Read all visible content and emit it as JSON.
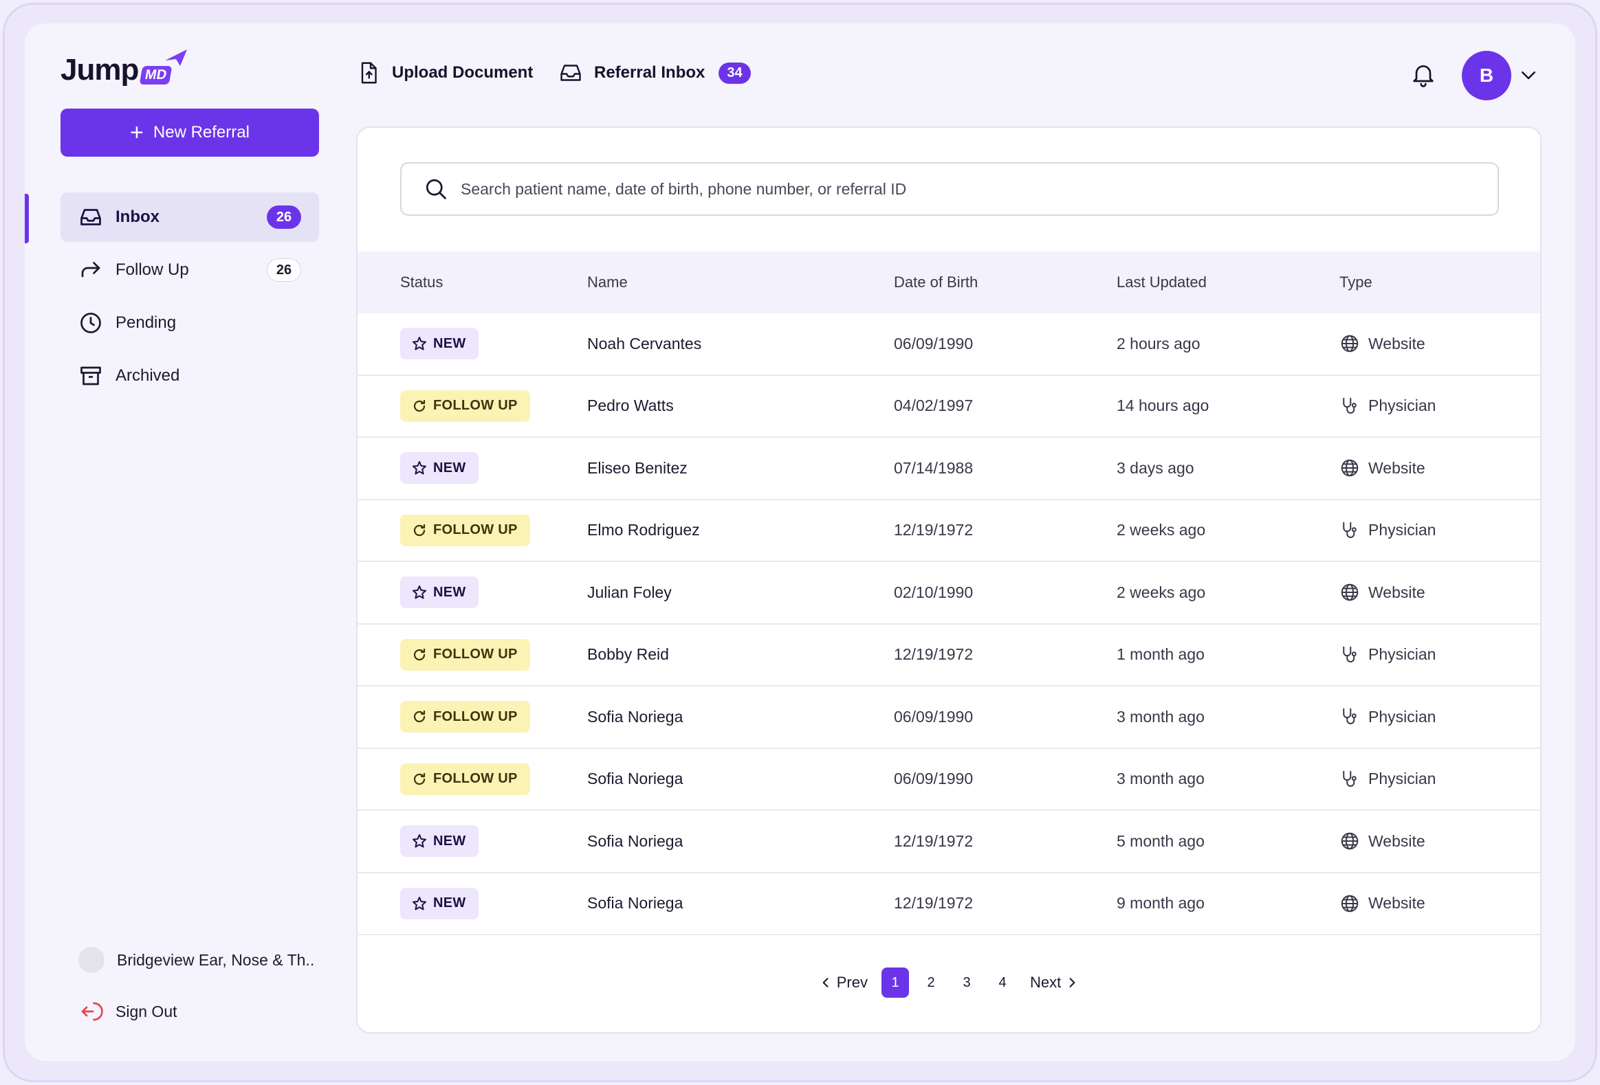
{
  "brand": {
    "logo_word": "Jump",
    "logo_suffix": "MD"
  },
  "sidebar": {
    "new_referral_label": "New Referral",
    "items": [
      {
        "label": "Inbox",
        "badge": "26",
        "icon": "inbox-icon",
        "active": true
      },
      {
        "label": "Follow Up",
        "badge": "26",
        "icon": "forward-arrow-icon",
        "active": false
      },
      {
        "label": "Pending",
        "badge": "",
        "icon": "clock-icon",
        "active": false
      },
      {
        "label": "Archived",
        "badge": "",
        "icon": "archive-icon",
        "active": false
      }
    ],
    "org_name": "Bridgeview Ear, Nose & Th..",
    "sign_out_label": "Sign Out"
  },
  "header": {
    "upload_label": "Upload Document",
    "referral_inbox_label": "Referral Inbox",
    "referral_inbox_count": "34",
    "avatar_initial": "B"
  },
  "search": {
    "placeholder": "Search patient name, date of birth, phone number, or referral ID"
  },
  "table": {
    "columns": [
      "Status",
      "Name",
      "Date of Birth",
      "Last Updated",
      "Type"
    ],
    "rows": [
      {
        "status": "NEW",
        "name": "Noah Cervantes",
        "dob": "06/09/1990",
        "updated": "2 hours ago",
        "type": "Website"
      },
      {
        "status": "FOLLOW UP",
        "name": "Pedro Watts",
        "dob": "04/02/1997",
        "updated": "14 hours ago",
        "type": "Physician"
      },
      {
        "status": "NEW",
        "name": "Eliseo Benitez",
        "dob": "07/14/1988",
        "updated": "3 days ago",
        "type": "Website"
      },
      {
        "status": "FOLLOW UP",
        "name": "Elmo Rodriguez",
        "dob": "12/19/1972",
        "updated": "2 weeks ago",
        "type": "Physician"
      },
      {
        "status": "NEW",
        "name": "Julian Foley",
        "dob": "02/10/1990",
        "updated": "2 weeks ago",
        "type": "Website"
      },
      {
        "status": "FOLLOW UP",
        "name": "Bobby Reid",
        "dob": "12/19/1972",
        "updated": "1 month ago",
        "type": "Physician"
      },
      {
        "status": "FOLLOW UP",
        "name": "Sofia Noriega",
        "dob": "06/09/1990",
        "updated": "3 month ago",
        "type": "Physician"
      },
      {
        "status": "FOLLOW UP",
        "name": "Sofia Noriega",
        "dob": "06/09/1990",
        "updated": "3 month ago",
        "type": "Physician"
      },
      {
        "status": "NEW",
        "name": "Sofia Noriega",
        "dob": "12/19/1972",
        "updated": "5 month ago",
        "type": "Website"
      },
      {
        "status": "NEW",
        "name": "Sofia Noriega",
        "dob": "12/19/1972",
        "updated": "9 month ago",
        "type": "Website"
      }
    ]
  },
  "pagination": {
    "prev_label": "Prev",
    "next_label": "Next",
    "pages": [
      "1",
      "2",
      "3",
      "4"
    ],
    "current": "1"
  },
  "colors": {
    "accent": "#6c34e8",
    "new_chip": "#ede6fc",
    "follow_chip": "#fbf3b4"
  }
}
